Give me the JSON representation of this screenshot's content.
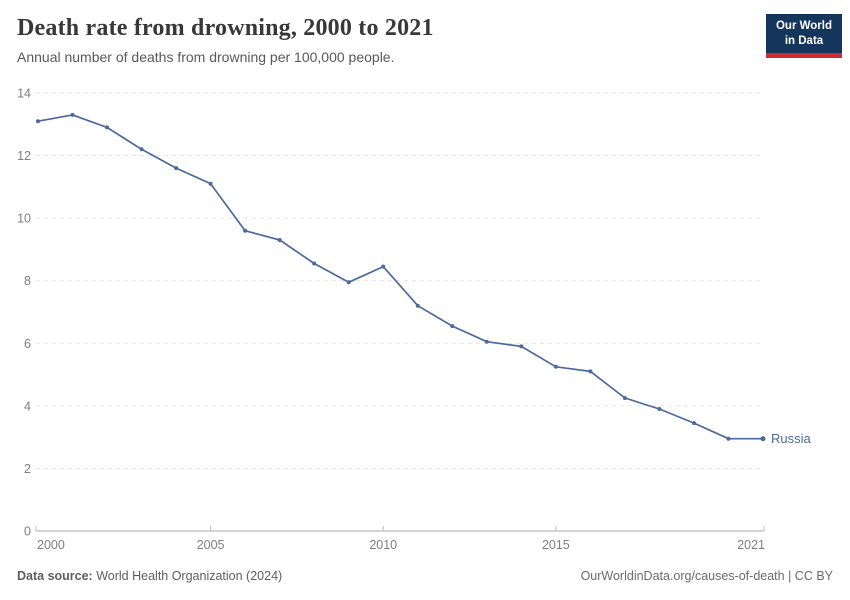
{
  "header": {
    "title": "Death rate from drowning, 2000 to 2021",
    "subtitle": "Annual number of deaths from drowning per 100,000 people.",
    "logo": {
      "line1": "Our World",
      "line2": "in Data",
      "bg_color": "#14355c",
      "accent_color": "#cc2b33"
    }
  },
  "chart_data": {
    "type": "line",
    "title": "Death rate from drowning, 2000 to 2021",
    "xlabel": "",
    "ylabel": "",
    "x": [
      2000,
      2001,
      2002,
      2003,
      2004,
      2005,
      2006,
      2007,
      2008,
      2009,
      2010,
      2011,
      2012,
      2013,
      2014,
      2015,
      2016,
      2017,
      2018,
      2019,
      2020,
      2021
    ],
    "series": [
      {
        "name": "Russia",
        "color": "#4c6a9c",
        "values": [
          13.1,
          13.3,
          12.9,
          12.2,
          11.6,
          11.1,
          9.6,
          9.3,
          8.55,
          7.95,
          8.45,
          7.2,
          6.55,
          6.05,
          5.9,
          5.25,
          5.1,
          4.25,
          3.9,
          3.45,
          2.95,
          2.95
        ]
      }
    ],
    "ylim": [
      0,
      14
    ],
    "yticks": [
      0,
      2,
      4,
      6,
      8,
      10,
      12,
      14
    ],
    "xticks": [
      2000,
      2005,
      2010,
      2015,
      2021
    ],
    "grid": "dashed-horizontal",
    "legend_position": "end-of-line",
    "colors": {
      "gridline": "#e3e3e3",
      "axis": "#a9a9a9",
      "tick": "#bdbdbd",
      "tick_label": "#7e7e7e"
    }
  },
  "footer": {
    "source_label": "Data source:",
    "source_value": "World Health Organization (2024)",
    "attribution": "OurWorldinData.org/causes-of-death | CC BY"
  }
}
